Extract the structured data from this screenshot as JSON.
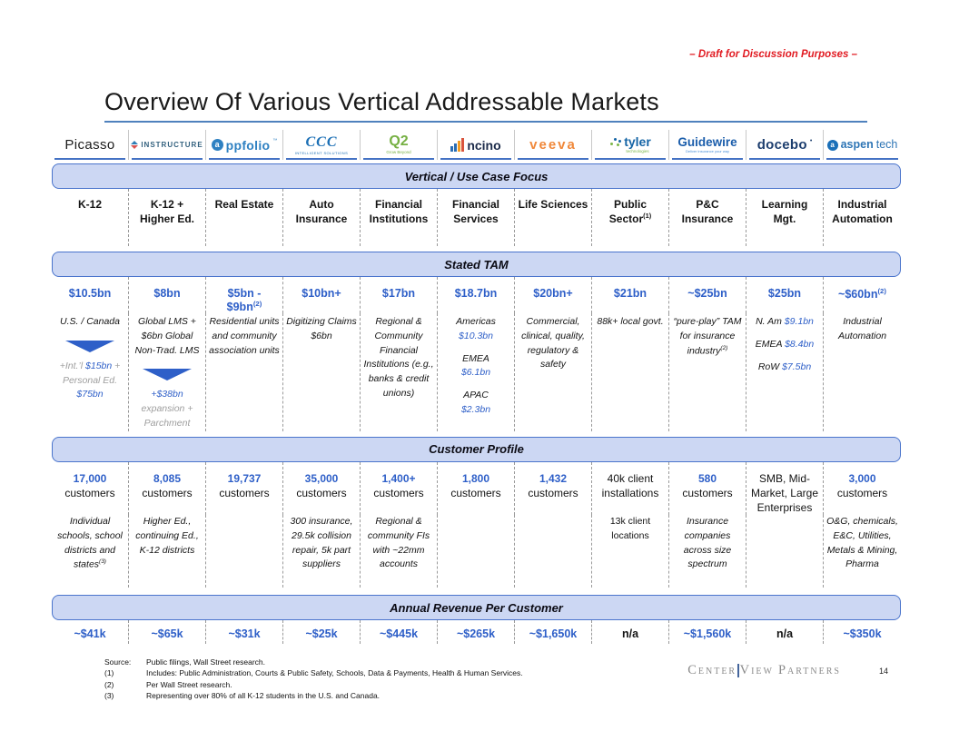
{
  "page": {
    "draft_note": "– Draft for Discussion Purposes –",
    "title": "Overview Of Various Vertical Addressable Markets",
    "page_number": "14"
  },
  "palette": {
    "accent_blue": "#2e5fc8",
    "band_fill": "#ccd7f3",
    "band_border": "#4a74cc",
    "draft_red": "#e11b22",
    "gray_text": "#9e9e9e"
  },
  "bands": {
    "vertical": "Vertical / Use Case Focus",
    "tam": "Stated TAM",
    "customer": "Customer Profile",
    "revenue": "Annual Revenue Per Customer"
  },
  "columns": [
    {
      "id": "picasso",
      "logo": {
        "type": "picasso",
        "text": "Picasso",
        "color": "#1c1c1c"
      },
      "vertical": [
        {
          "segs": [
            {
              "t": "K-12"
            }
          ]
        }
      ],
      "tam": [
        {
          "segs": [
            {
              "t": "$10.5bn",
              "c": "blue"
            }
          ]
        }
      ],
      "tam_detail": [
        {
          "segs": [
            {
              "t": "U.S. / Canada"
            }
          ]
        },
        {
          "arrow": 1
        },
        {
          "segs": [
            {
              "t": "+Int.’l ",
              "c": "gray"
            },
            {
              "t": "$15bn",
              "c": "blue"
            },
            {
              "t": " + Personal Ed. ",
              "c": "gray"
            },
            {
              "t": "$75bn",
              "c": "blue"
            }
          ]
        }
      ],
      "customers": [
        {
          "segs": [
            {
              "t": "17,000",
              "c": "blue",
              "b": 1
            }
          ]
        },
        {
          "segs": [
            {
              "t": "customers"
            }
          ]
        }
      ],
      "cust_detail": [
        {
          "segs": [
            {
              "t": "Individual schools, school districts and states"
            },
            {
              "t": "(3)",
              "sup": 1
            }
          ]
        }
      ],
      "revenue": [
        {
          "segs": [
            {
              "t": "~$41k",
              "c": "blue"
            }
          ]
        }
      ]
    },
    {
      "id": "instructure",
      "logo": {
        "type": "instructure",
        "text": "INSTRUCTURE",
        "color": "#33617e"
      },
      "vertical": [
        {
          "segs": [
            {
              "t": "K-12 +"
            }
          ]
        },
        {
          "segs": [
            {
              "t": "Higher Ed."
            }
          ]
        }
      ],
      "tam": [
        {
          "segs": [
            {
              "t": "$8bn",
              "c": "blue"
            }
          ]
        }
      ],
      "tam_detail": [
        {
          "segs": [
            {
              "t": "Global LMS + $6bn Global Non-Trad. LMS"
            }
          ]
        },
        {
          "arrow": 1
        },
        {
          "segs": [
            {
              "t": "+$38bn",
              "c": "blue"
            }
          ]
        },
        {
          "segs": [
            {
              "t": "expansion + Parchment",
              "c": "gray"
            }
          ]
        }
      ],
      "customers": [
        {
          "segs": [
            {
              "t": "8,085",
              "c": "blue",
              "b": 1
            }
          ]
        },
        {
          "segs": [
            {
              "t": "customers"
            }
          ]
        }
      ],
      "cust_detail": [
        {
          "segs": [
            {
              "t": "Higher Ed., continuing Ed., K-12 districts"
            }
          ]
        }
      ],
      "revenue": [
        {
          "segs": [
            {
              "t": "~$65k",
              "c": "blue"
            }
          ]
        }
      ]
    },
    {
      "id": "appfolio",
      "logo": {
        "type": "appfolio",
        "a": "a",
        "text": "ppfolio",
        "tm": "™",
        "color": "#2f81c2"
      },
      "vertical": [
        {
          "segs": [
            {
              "t": "Real Estate"
            }
          ]
        }
      ],
      "tam": [
        {
          "segs": [
            {
              "t": "$5bn - $9bn",
              "c": "blue"
            },
            {
              "t": "(2)",
              "c": "blue",
              "sup": 1
            }
          ]
        }
      ],
      "tam_detail": [
        {
          "segs": [
            {
              "t": "Residential units and community association units"
            }
          ]
        }
      ],
      "customers": [
        {
          "segs": [
            {
              "t": "19,737",
              "c": "blue",
              "b": 1
            }
          ]
        },
        {
          "segs": [
            {
              "t": "customers"
            }
          ]
        }
      ],
      "cust_detail": [],
      "revenue": [
        {
          "segs": [
            {
              "t": "~$31k",
              "c": "blue"
            }
          ]
        }
      ]
    },
    {
      "id": "ccc",
      "logo": {
        "type": "ccc",
        "text": "CCC",
        "sub": "INTELLIGENT SOLUTIONS",
        "color": "#1b6fb5"
      },
      "vertical": [
        {
          "segs": [
            {
              "t": "Auto"
            }
          ]
        },
        {
          "segs": [
            {
              "t": "Insurance"
            }
          ]
        }
      ],
      "tam": [
        {
          "segs": [
            {
              "t": "$10bn+",
              "c": "blue"
            }
          ]
        }
      ],
      "tam_detail": [
        {
          "segs": [
            {
              "t": "Digitizing Claims $6bn"
            }
          ]
        }
      ],
      "customers": [
        {
          "segs": [
            {
              "t": "35,000",
              "c": "blue",
              "b": 1
            }
          ]
        },
        {
          "segs": [
            {
              "t": "customers"
            }
          ]
        }
      ],
      "cust_detail": [
        {
          "segs": [
            {
              "t": "300 insurance, 29.5k collision repair, 5k part suppliers"
            }
          ]
        }
      ],
      "revenue": [
        {
          "segs": [
            {
              "t": "~$25k",
              "c": "blue"
            }
          ]
        }
      ]
    },
    {
      "id": "q2",
      "logo": {
        "type": "q2",
        "text": "Q2",
        "sub": "Grow Beyond",
        "color": "#76b043"
      },
      "vertical": [
        {
          "segs": [
            {
              "t": "Financial"
            }
          ]
        },
        {
          "segs": [
            {
              "t": "Institutions"
            }
          ]
        }
      ],
      "tam": [
        {
          "segs": [
            {
              "t": "$17bn",
              "c": "blue"
            }
          ]
        }
      ],
      "tam_detail": [
        {
          "segs": [
            {
              "t": "Regional & Community Financial Institutions (e.g., banks & credit unions)"
            }
          ]
        }
      ],
      "customers": [
        {
          "segs": [
            {
              "t": "1,400+",
              "c": "blue",
              "b": 1
            }
          ]
        },
        {
          "segs": [
            {
              "t": "customers"
            }
          ]
        }
      ],
      "cust_detail": [
        {
          "segs": [
            {
              "t": "Regional & community FIs with ~22mm accounts"
            }
          ]
        }
      ],
      "revenue": [
        {
          "segs": [
            {
              "t": "~$445k",
              "c": "blue"
            }
          ]
        }
      ]
    },
    {
      "id": "ncino",
      "logo": {
        "type": "ncino",
        "text": "ncino",
        "color": "#1c2b4a"
      },
      "vertical": [
        {
          "segs": [
            {
              "t": "Financial"
            }
          ]
        },
        {
          "segs": [
            {
              "t": "Services"
            }
          ]
        }
      ],
      "tam": [
        {
          "segs": [
            {
              "t": "$18.7bn",
              "c": "blue"
            }
          ]
        }
      ],
      "tam_detail": [
        {
          "segs": [
            {
              "t": "Americas"
            }
          ]
        },
        {
          "segs": [
            {
              "t": "$10.3bn",
              "c": "blue"
            }
          ],
          "sp": 1
        },
        {
          "segs": [
            {
              "t": "EMEA"
            }
          ]
        },
        {
          "segs": [
            {
              "t": "$6.1bn",
              "c": "blue"
            }
          ],
          "sp": 1
        },
        {
          "segs": [
            {
              "t": "APAC"
            }
          ]
        },
        {
          "segs": [
            {
              "t": "$2.3bn",
              "c": "blue"
            }
          ]
        }
      ],
      "customers": [
        {
          "segs": [
            {
              "t": "1,800",
              "c": "blue",
              "b": 1
            }
          ]
        },
        {
          "segs": [
            {
              "t": "customers"
            }
          ]
        }
      ],
      "cust_detail": [],
      "revenue": [
        {
          "segs": [
            {
              "t": "~$265k",
              "c": "blue"
            }
          ]
        }
      ]
    },
    {
      "id": "veeva",
      "logo": {
        "type": "veeva",
        "text": "veeva",
        "color": "#f0883a"
      },
      "vertical": [
        {
          "segs": [
            {
              "t": "Life Sciences"
            }
          ]
        }
      ],
      "tam": [
        {
          "segs": [
            {
              "t": "$20bn+",
              "c": "blue"
            }
          ]
        }
      ],
      "tam_detail": [
        {
          "segs": [
            {
              "t": "Commercial, clinical, quality, regulatory & safety"
            }
          ]
        }
      ],
      "customers": [
        {
          "segs": [
            {
              "t": "1,432",
              "c": "blue",
              "b": 1
            }
          ]
        },
        {
          "segs": [
            {
              "t": "customers"
            }
          ]
        }
      ],
      "cust_detail": [],
      "revenue": [
        {
          "segs": [
            {
              "t": "~$1,650k",
              "c": "blue"
            }
          ]
        }
      ]
    },
    {
      "id": "tyler",
      "logo": {
        "type": "tyler",
        "text": "tyler",
        "sub": "technologies",
        "color": "#1464a5"
      },
      "vertical": [
        {
          "segs": [
            {
              "t": "Public"
            }
          ]
        },
        {
          "segs": [
            {
              "t": "Sector"
            },
            {
              "t": "(1)",
              "sup": 1
            }
          ]
        }
      ],
      "tam": [
        {
          "segs": [
            {
              "t": "$21bn",
              "c": "blue"
            }
          ]
        }
      ],
      "tam_detail": [
        {
          "segs": [
            {
              "t": "88k+ local govt."
            }
          ]
        }
      ],
      "customers": [
        {
          "segs": [
            {
              "t": "40k client installations"
            }
          ]
        }
      ],
      "cust_detail": [
        {
          "segs": [
            {
              "t": "13k client locations"
            }
          ],
          "ni": 1
        }
      ],
      "revenue": [
        {
          "segs": [
            {
              "t": "n/a"
            }
          ]
        }
      ]
    },
    {
      "id": "guidewire",
      "logo": {
        "type": "guidewire",
        "text": "Guidewire",
        "sub": "Deliver insurance your way",
        "color": "#1a5dab"
      },
      "vertical": [
        {
          "segs": [
            {
              "t": "P&C"
            }
          ]
        },
        {
          "segs": [
            {
              "t": "Insurance"
            }
          ]
        }
      ],
      "tam": [
        {
          "segs": [
            {
              "t": "~$25bn",
              "c": "blue"
            }
          ]
        }
      ],
      "tam_detail": [
        {
          "segs": [
            {
              "t": "“pure-play” TAM for insurance industry"
            },
            {
              "t": "(2)",
              "sup": 1
            }
          ]
        }
      ],
      "customers": [
        {
          "segs": [
            {
              "t": "580",
              "c": "blue",
              "b": 1
            }
          ]
        },
        {
          "segs": [
            {
              "t": "customers"
            }
          ]
        }
      ],
      "cust_detail": [
        {
          "segs": [
            {
              "t": "Insurance companies across size spectrum"
            }
          ]
        }
      ],
      "revenue": [
        {
          "segs": [
            {
              "t": "~$1,560k",
              "c": "blue"
            }
          ]
        }
      ]
    },
    {
      "id": "docebo",
      "logo": {
        "type": "docebo",
        "text": "docebo",
        "sup": "•",
        "color": "#1d3e6e"
      },
      "vertical": [
        {
          "segs": [
            {
              "t": "Learning"
            }
          ]
        },
        {
          "segs": [
            {
              "t": "Mgt."
            }
          ]
        }
      ],
      "tam": [
        {
          "segs": [
            {
              "t": "$25bn",
              "c": "blue"
            }
          ]
        }
      ],
      "tam_detail": [
        {
          "segs": [
            {
              "t": "N. Am "
            },
            {
              "t": "$9.1bn",
              "c": "blue"
            }
          ],
          "sp": 1
        },
        {
          "segs": [
            {
              "t": "EMEA "
            },
            {
              "t": "$8.4bn",
              "c": "blue"
            }
          ],
          "sp": 1
        },
        {
          "segs": [
            {
              "t": "RoW "
            },
            {
              "t": "$7.5bn",
              "c": "blue"
            }
          ]
        }
      ],
      "customers": [
        {
          "segs": [
            {
              "t": "SMB, Mid-Market, Large Enterprises"
            }
          ]
        }
      ],
      "cust_detail": [],
      "revenue": [
        {
          "segs": [
            {
              "t": "n/a"
            }
          ]
        }
      ]
    },
    {
      "id": "aspentech",
      "logo": {
        "type": "aspentech",
        "icon_letter": "a",
        "bold": "aspen",
        "light": "tech",
        "color": "#2e75b5"
      },
      "vertical": [
        {
          "segs": [
            {
              "t": "Industrial"
            }
          ]
        },
        {
          "segs": [
            {
              "t": "Automation"
            }
          ]
        }
      ],
      "tam": [
        {
          "segs": [
            {
              "t": "~$60bn",
              "c": "blue"
            },
            {
              "t": "(2)",
              "c": "blue",
              "sup": 1
            }
          ]
        }
      ],
      "tam_detail": [
        {
          "segs": [
            {
              "t": "Industrial Automation"
            }
          ]
        }
      ],
      "customers": [
        {
          "segs": [
            {
              "t": "3,000",
              "c": "blue",
              "b": 1
            }
          ]
        },
        {
          "segs": [
            {
              "t": "customers"
            }
          ]
        }
      ],
      "cust_detail": [
        {
          "segs": [
            {
              "t": "O&G, chemicals, E&C, Utilities, Metals & Mining, Pharma"
            }
          ]
        }
      ],
      "revenue": [
        {
          "segs": [
            {
              "t": "~$350k",
              "c": "blue"
            }
          ]
        }
      ]
    }
  ],
  "footer": {
    "source_label": "Source:",
    "source_text": "Public filings, Wall Street research.",
    "notes": [
      {
        "num": "(1)",
        "text": "Includes: Public Administration, Courts & Public Safety, Schools, Data & Payments, Health & Human Services."
      },
      {
        "num": "(2)",
        "text": "Per Wall Street research."
      },
      {
        "num": "(3)",
        "text": "Representing over 80% of all K-12 students in the U.S. and Canada."
      }
    ],
    "brand": {
      "name_left": "Center",
      "name_right": "View",
      "name_suffix": "Partners"
    }
  }
}
